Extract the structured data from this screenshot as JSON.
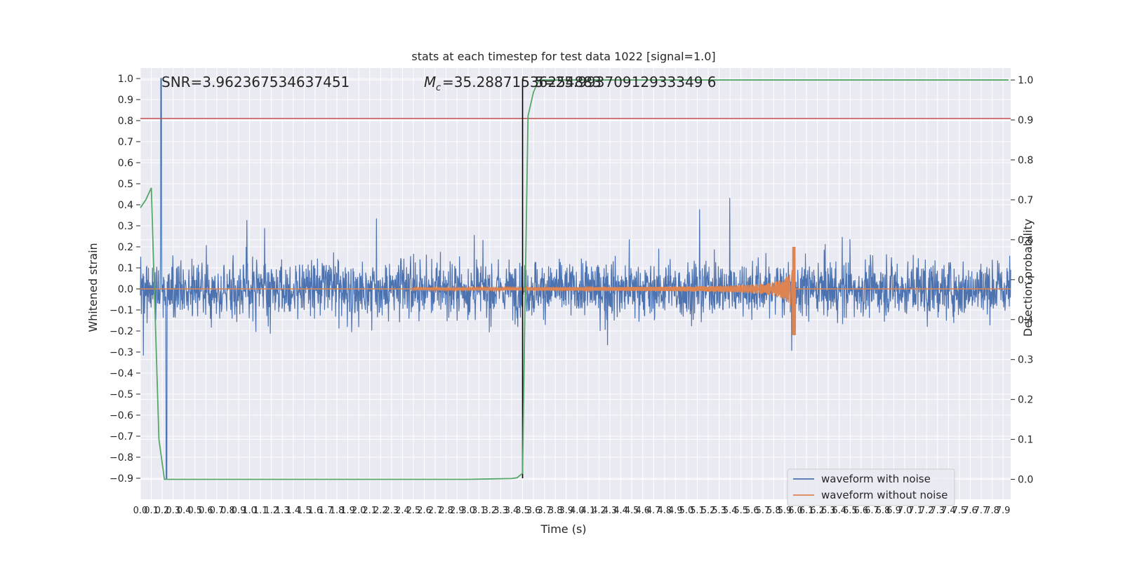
{
  "chart_data": {
    "type": "line",
    "title": "stats at each timestep for test data 1022 [signal=1.0]",
    "xlabel": "Time (s)",
    "ylabel_left": "Whitened strain",
    "ylabel_right": "Detection probability",
    "xlim": [
      0.0,
      7.97
    ],
    "ylim_left": [
      -1.0,
      1.05
    ],
    "ylim_right": [
      -0.05,
      1.03
    ],
    "x_ticks": [
      0.0,
      0.1,
      0.2,
      0.3,
      0.4,
      0.5,
      0.6,
      0.7,
      0.8,
      0.9,
      1.0,
      1.1,
      1.2,
      1.3,
      1.4,
      1.5,
      1.6,
      1.7,
      1.8,
      1.9,
      2.0,
      2.1,
      2.2,
      2.3,
      2.4,
      2.5,
      2.6,
      2.7,
      2.8,
      2.9,
      3.0,
      3.1,
      3.2,
      3.3,
      3.4,
      3.5,
      3.6,
      3.7,
      3.8,
      3.9,
      4.0,
      4.1,
      4.2,
      4.3,
      4.4,
      4.5,
      4.6,
      4.7,
      4.8,
      4.9,
      5.0,
      5.1,
      5.2,
      5.3,
      5.4,
      5.5,
      5.6,
      5.7,
      5.8,
      5.9,
      6.0,
      6.1,
      6.2,
      6.3,
      6.4,
      6.5,
      6.6,
      6.7,
      6.8,
      6.9,
      7.0,
      7.1,
      7.2,
      7.3,
      7.4,
      7.5,
      7.6,
      7.7,
      7.8,
      7.9
    ],
    "y_ticks_left": [
      1.0,
      0.9,
      0.8,
      0.7,
      0.6,
      0.5,
      0.4,
      0.3,
      0.2,
      0.1,
      0.0,
      -0.1,
      -0.2,
      -0.3,
      -0.4,
      -0.5,
      -0.6,
      -0.7,
      -0.8,
      -0.9
    ],
    "y_ticks_right": [
      1.0,
      0.9,
      0.8,
      0.7,
      0.6,
      0.5,
      0.4,
      0.3,
      0.2,
      0.1,
      0.0
    ],
    "annotations": {
      "snr": "SNR=3.962367534637451",
      "mc_prefix": "M",
      "mc_sub": "c",
      "mc_value": "=35.28871536254883",
      "overlap_text": "5=25.99370912933349 6"
    },
    "threshold_line": {
      "value": 0.81,
      "color": "#c44e52"
    },
    "event_line": {
      "x": 3.5,
      "color": "#000000"
    },
    "series": [
      {
        "name": "waveform with noise",
        "color": "#4c72b0",
        "note": "dense whitened strain noise, roughly ±0.3 with spikes to 1.0 near 0.2 s and -0.9 near 0.25 s"
      },
      {
        "name": "waveform without noise",
        "color": "#dd8452",
        "chirp": {
          "start": 2.5,
          "merger": 6.0,
          "peak_amplitude": 0.2,
          "min": -0.22
        }
      },
      {
        "name": "Detection probability",
        "axis": "right",
        "color": "#55a868",
        "x": [
          0.0,
          0.05,
          0.1,
          0.17,
          0.22,
          0.25,
          0.5,
          1.0,
          2.0,
          3.0,
          3.2,
          3.4,
          3.45,
          3.5,
          3.52,
          3.55,
          3.6,
          3.65,
          4.0,
          5.0,
          6.0,
          7.0,
          7.95
        ],
        "y": [
          0.68,
          0.7,
          0.73,
          0.1,
          0.0,
          0.0,
          0.0,
          0.0,
          0.0,
          0.0,
          0.001,
          0.002,
          0.004,
          0.015,
          0.4,
          0.91,
          0.97,
          1.0,
          1.0,
          1.0,
          1.0,
          1.0,
          1.0
        ]
      }
    ],
    "legend": {
      "position": "lower right",
      "items": [
        "waveform with noise",
        "waveform without noise"
      ]
    },
    "background": "#eaeaf2",
    "grid": true
  }
}
